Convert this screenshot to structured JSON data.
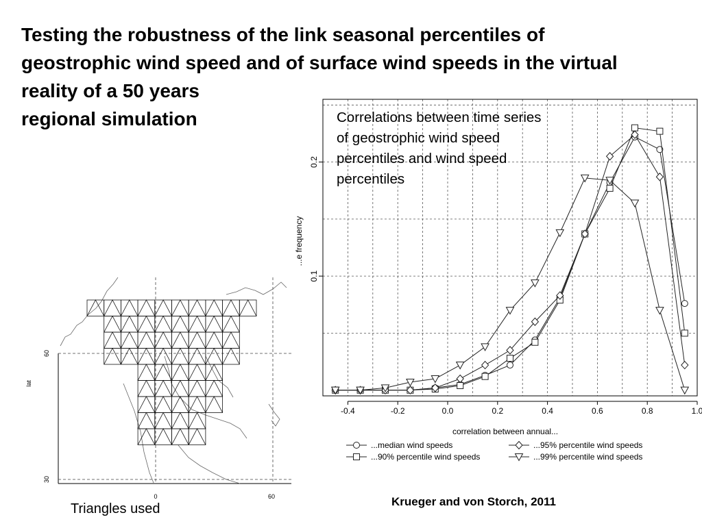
{
  "slide": {
    "title_lines": [
      "Testing the robustness of the link seasonal percentiles of",
      "geostrophic wind speed and of surface wind speeds in the virtual",
      "reality of a 50 years",
      "regional simulation"
    ],
    "annotation": "Correlations between time series of geostrophic wind speed percentiles and wind speed percentiles",
    "map_caption": "Triangles used",
    "citation": "Krueger and von Storch, 2011"
  },
  "map": {
    "ylabel": "lat",
    "lat_ticks": [
      "60",
      "30"
    ],
    "lon_ticks": [
      "0",
      "60"
    ]
  },
  "chart_data": {
    "type": "line",
    "title": "",
    "xlabel": "correlation between annual...",
    "ylabel": "...e frequency",
    "xlim": [
      -0.5,
      1.0
    ],
    "ylim": [
      -0.005,
      0.255
    ],
    "xticks": [
      -0.4,
      -0.2,
      0.0,
      0.2,
      0.4,
      0.6,
      0.8,
      1.0
    ],
    "xtick_labels": [
      "-0.4",
      "-0.2",
      "0.0",
      "0.2",
      "0.4",
      "0.6",
      "0.8",
      "1.0"
    ],
    "yticks": [
      0.1,
      0.2
    ],
    "ytick_labels": [
      "0.1",
      "0.2"
    ],
    "grid": true,
    "legend_position": "bottom",
    "x": [
      -0.45,
      -0.35,
      -0.25,
      -0.15,
      -0.05,
      0.05,
      0.15,
      0.25,
      0.35,
      0.45,
      0.55,
      0.65,
      0.75,
      0.85,
      0.95
    ],
    "series": [
      {
        "name": "...median wind speeds",
        "marker": "circle",
        "values": [
          0.0,
          0.0,
          0.0,
          0.0,
          0.002,
          0.005,
          0.013,
          0.022,
          0.044,
          0.081,
          0.137,
          0.182,
          0.222,
          0.211,
          0.076
        ]
      },
      {
        "name": "...90% percentile wind speeds",
        "marker": "square",
        "values": [
          0.0,
          0.0,
          0.0,
          0.0,
          0.001,
          0.004,
          0.012,
          0.028,
          0.042,
          0.079,
          0.137,
          0.177,
          0.23,
          0.227,
          0.05
        ]
      },
      {
        "name": "...95% percentile wind speeds",
        "marker": "diamond",
        "values": [
          0.0,
          0.0,
          0.0,
          0.0,
          0.002,
          0.01,
          0.022,
          0.035,
          0.06,
          0.083,
          0.137,
          0.205,
          0.224,
          0.187,
          0.022
        ]
      },
      {
        "name": "...99% percentile wind speeds",
        "marker": "triangle-down",
        "values": [
          0.0,
          0.0,
          0.002,
          0.007,
          0.01,
          0.022,
          0.038,
          0.07,
          0.094,
          0.138,
          0.186,
          0.184,
          0.164,
          0.07,
          0.0
        ]
      }
    ]
  }
}
